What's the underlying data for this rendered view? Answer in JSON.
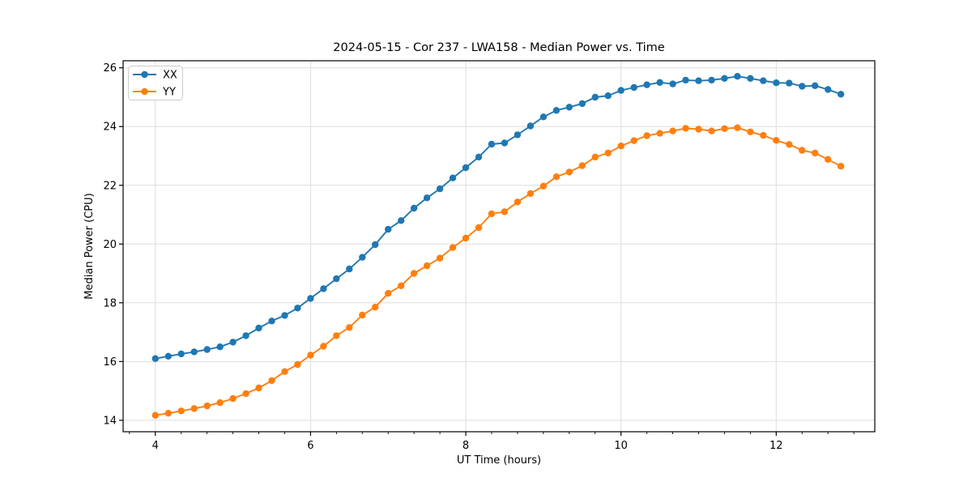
{
  "figure": {
    "background": "#ffffff",
    "frame_color": "#000000",
    "tick_color": "#000000"
  },
  "chart_data": {
    "type": "line",
    "title": "2024-05-15 - Cor 237 - LWA158 - Median Power vs. Time",
    "xlabel": "UT Time (hours)",
    "ylabel": "Median Power (CPU)",
    "xlim": [
      3.585,
      13.27
    ],
    "ylim": [
      13.61,
      26.24
    ],
    "xticks": [
      4,
      6,
      8,
      10,
      12
    ],
    "yticks": [
      14,
      16,
      18,
      20,
      22,
      24,
      26
    ],
    "x_minor_tick_step": 0.3333,
    "grid": true,
    "grid_color": "#dddddd",
    "marker": "circle",
    "marker_diameter": 8.4,
    "line_width": 1.9,
    "legend": {
      "position": "upper-left",
      "entries": [
        "XX",
        "YY"
      ]
    },
    "x": [
      4.0,
      4.167,
      4.333,
      4.5,
      4.667,
      4.833,
      5.0,
      5.167,
      5.333,
      5.5,
      5.667,
      5.833,
      6.0,
      6.167,
      6.333,
      6.5,
      6.667,
      6.833,
      7.0,
      7.167,
      7.333,
      7.5,
      7.667,
      7.833,
      8.0,
      8.167,
      8.333,
      8.5,
      8.667,
      8.833,
      9.0,
      9.167,
      9.333,
      9.5,
      9.667,
      9.833,
      10.0,
      10.167,
      10.333,
      10.5,
      10.667,
      10.833,
      11.0,
      11.167,
      11.333,
      11.5,
      11.667,
      11.833,
      12.0,
      12.167,
      12.333,
      12.5,
      12.667,
      12.833
    ],
    "series": [
      {
        "name": "XX",
        "color": "#1f77b4",
        "values": [
          16.1,
          16.18,
          16.26,
          16.33,
          16.41,
          16.5,
          16.66,
          16.88,
          17.14,
          17.38,
          17.57,
          17.82,
          18.15,
          18.48,
          18.82,
          19.15,
          19.55,
          19.98,
          20.5,
          20.8,
          21.22,
          21.57,
          21.88,
          22.25,
          22.6,
          22.96,
          23.4,
          23.44,
          23.72,
          24.02,
          24.33,
          24.55,
          24.66,
          24.78,
          25.0,
          25.05,
          25.23,
          25.33,
          25.42,
          25.5,
          25.45,
          25.58,
          25.56,
          25.58,
          25.64,
          25.71,
          25.64,
          25.56,
          25.49,
          25.48,
          25.37,
          25.39,
          25.26,
          25.1
        ]
      },
      {
        "name": "YY",
        "color": "#ff7f0e",
        "values": [
          14.17,
          14.24,
          14.32,
          14.4,
          14.49,
          14.6,
          14.74,
          14.91,
          15.1,
          15.35,
          15.66,
          15.9,
          16.22,
          16.52,
          16.88,
          17.16,
          17.58,
          17.85,
          18.32,
          18.58,
          19.0,
          19.26,
          19.52,
          19.88,
          20.2,
          20.56,
          21.03,
          21.1,
          21.43,
          21.72,
          21.97,
          22.29,
          22.45,
          22.67,
          22.96,
          23.1,
          23.34,
          23.52,
          23.69,
          23.77,
          23.85,
          23.94,
          23.91,
          23.85,
          23.93,
          23.96,
          23.82,
          23.7,
          23.53,
          23.39,
          23.19,
          23.1,
          22.88,
          22.65
        ]
      }
    ]
  }
}
